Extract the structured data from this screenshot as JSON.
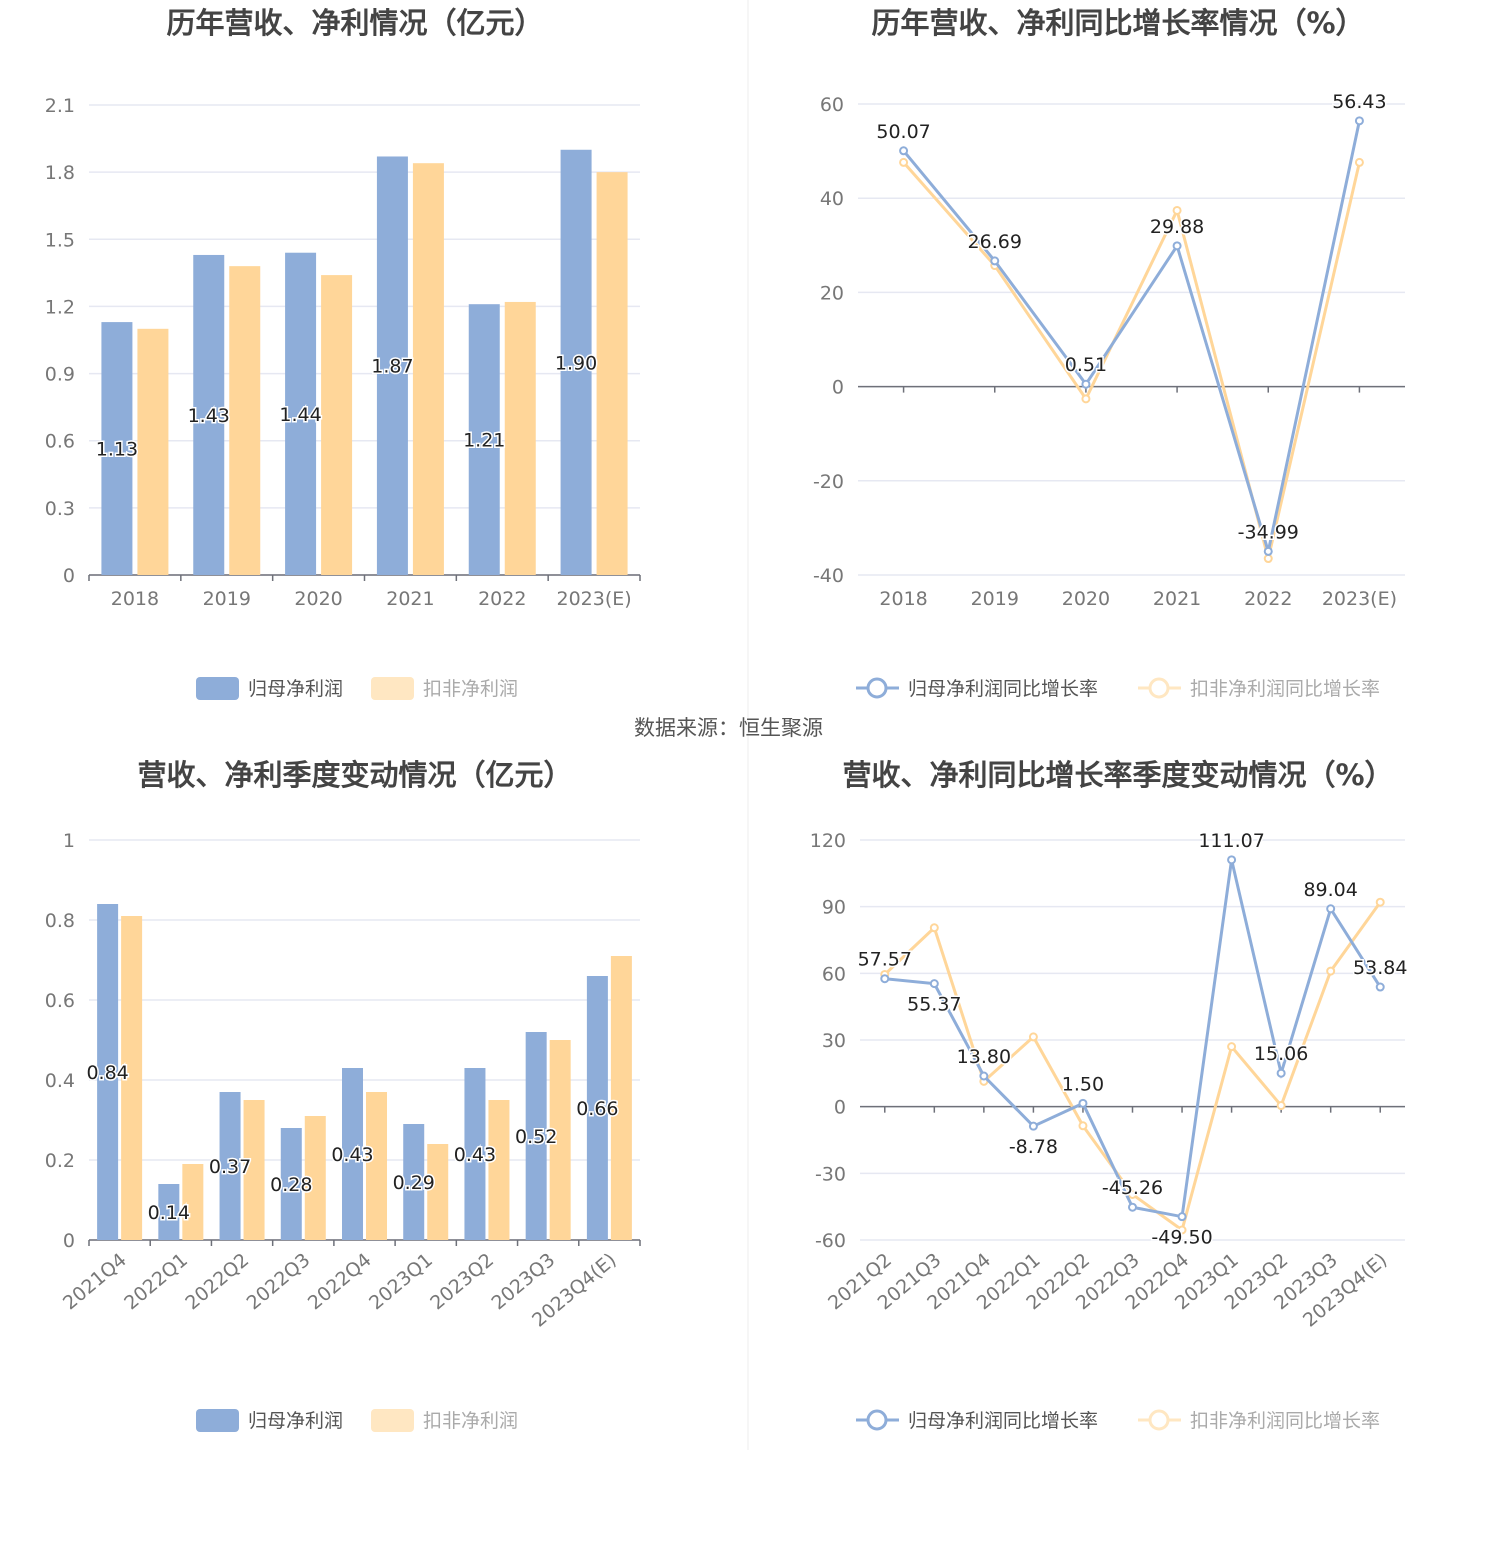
{
  "source_text": "数据来源：恒生聚源",
  "colors": {
    "blue": "#8eadd9",
    "yellow": "#ffd699",
    "grid": "#e6e8f2",
    "axis": "#6e7079"
  },
  "chart_data": [
    {
      "type": "bar",
      "title": "历年营收、净利情况（亿元）",
      "categories": [
        "2018",
        "2019",
        "2020",
        "2021",
        "2022",
        "2023(E)"
      ],
      "ylim": [
        0,
        2.1
      ],
      "yticks": [
        "0",
        "0.3",
        "0.6",
        "0.9",
        "1.2",
        "1.5",
        "1.8",
        "2.1"
      ],
      "grid": true,
      "legend": "bottom",
      "series": [
        {
          "name": "归母净利润",
          "values": [
            1.13,
            1.43,
            1.44,
            1.87,
            1.21,
            1.9
          ],
          "labels": [
            "1.13",
            "1.43",
            "1.44",
            "1.87",
            "1.21",
            "1.90"
          ]
        },
        {
          "name": "扣非净利润",
          "values": [
            1.1,
            1.38,
            1.34,
            1.84,
            1.22,
            1.8
          ]
        }
      ]
    },
    {
      "type": "line",
      "title": "历年营收、净利同比增长率情况（%）",
      "categories": [
        "2018",
        "2019",
        "2020",
        "2021",
        "2022",
        "2023(E)"
      ],
      "ylim": [
        -40,
        60
      ],
      "yticks": [
        "-40",
        "-20",
        "0",
        "20",
        "40",
        "60"
      ],
      "grid": true,
      "legend": "bottom",
      "series": [
        {
          "name": "归母净利润同比增长率",
          "values": [
            50.07,
            26.69,
            0.51,
            29.88,
            -34.99,
            56.43
          ],
          "labels": [
            "50.07",
            "26.69",
            "0.51",
            "29.88",
            "-34.99",
            "56.43"
          ]
        },
        {
          "name": "扣非净利润同比增长率",
          "values": [
            47.6,
            25.7,
            -2.6,
            37.4,
            -36.5,
            47.6
          ]
        }
      ]
    },
    {
      "type": "bar",
      "title": "营收、净利季度变动情况（亿元）",
      "categories": [
        "2021Q4",
        "2022Q1",
        "2022Q2",
        "2022Q3",
        "2022Q4",
        "2023Q1",
        "2023Q2",
        "2023Q3",
        "2023Q4(E)"
      ],
      "ylim": [
        0,
        1
      ],
      "yticks": [
        "0",
        "0.2",
        "0.4",
        "0.6",
        "0.8",
        "1"
      ],
      "grid": true,
      "legend": "bottom",
      "series": [
        {
          "name": "归母净利润",
          "values": [
            0.84,
            0.14,
            0.37,
            0.28,
            0.43,
            0.29,
            0.43,
            0.52,
            0.66
          ],
          "labels": [
            "0.84",
            "0.14",
            "0.37",
            "0.28",
            "0.43",
            "0.29",
            "0.43",
            "0.52",
            "0.66"
          ]
        },
        {
          "name": "扣非净利润",
          "values": [
            0.81,
            0.19,
            0.35,
            0.31,
            0.37,
            0.24,
            0.35,
            0.5,
            0.71
          ]
        }
      ]
    },
    {
      "type": "line",
      "title": "营收、净利同比增长率季度变动情况（%）",
      "categories": [
        "2021Q2",
        "2021Q3",
        "2021Q4",
        "2022Q1",
        "2022Q2",
        "2022Q3",
        "2022Q4",
        "2023Q1",
        "2023Q2",
        "2023Q3",
        "2023Q4(E)"
      ],
      "ylim": [
        -60,
        120
      ],
      "yticks": [
        "-60",
        "-30",
        "0",
        "30",
        "60",
        "90",
        "120"
      ],
      "grid": true,
      "legend": "bottom",
      "series": [
        {
          "name": "归母净利润同比增长率",
          "values": [
            57.57,
            55.37,
            13.8,
            -8.78,
            1.5,
            -45.26,
            -49.5,
            111.07,
            15.06,
            89.04,
            53.84
          ],
          "labels": [
            "57.57",
            "55.37",
            "13.80",
            "-8.78",
            "1.50",
            "-45.26",
            "-49.50",
            "111.07",
            "15.06",
            "89.04",
            "53.84"
          ]
        },
        {
          "name": "扣非净利润同比增长率",
          "values": [
            59.5,
            80.5,
            11.4,
            31.4,
            -8.6,
            -39.5,
            -55.5,
            27.0,
            0.5,
            61.0,
            92.0
          ]
        }
      ]
    }
  ]
}
